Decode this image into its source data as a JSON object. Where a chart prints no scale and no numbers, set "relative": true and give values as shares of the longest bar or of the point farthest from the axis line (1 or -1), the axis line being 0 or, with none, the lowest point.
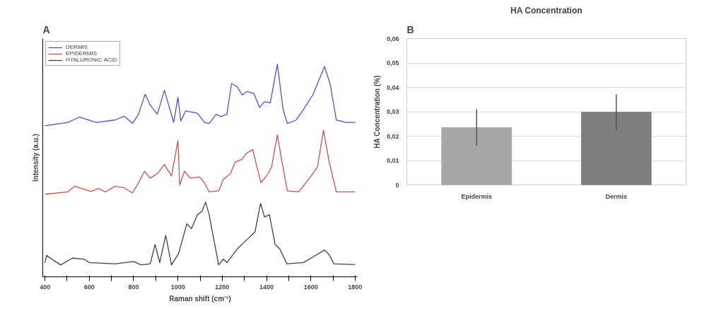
{
  "chart_data": [
    {
      "type": "line",
      "relative": true,
      "xlabel": "Raman shift (cm⁻¹)",
      "ylabel": "Intensity (a.u.)",
      "annotations": [
        "A"
      ],
      "legend": "top left",
      "grid": false,
      "tick_labels": "x",
      "xlim": [
        390,
        1810
      ],
      "xticks": [
        400,
        {
          "value": 500,
          "label": null
        },
        600,
        {
          "value": 700,
          "label": null
        },
        800,
        {
          "value": 900,
          "label": null
        },
        1000,
        {
          "value": 1100,
          "label": null
        },
        1200,
        {
          "value": 1300,
          "label": null
        },
        1400,
        {
          "value": 1500,
          "label": null
        },
        1600,
        {
          "value": 1700,
          "label": null
        },
        1800
      ],
      "series": [
        {
          "name": "DERMIS",
          "color": "#5050c8",
          "x": [
            400,
            503,
            556,
            631,
            716,
            758,
            795,
            822,
            852,
            875,
            907,
            939,
            981,
            1000,
            1013,
            1035,
            1088,
            1120,
            1141,
            1173,
            1194,
            1221,
            1242,
            1268,
            1290,
            1311,
            1343,
            1369,
            1391,
            1417,
            1449,
            1475,
            1494,
            1534,
            1566,
            1609,
            1662,
            1688,
            1715,
            1758,
            1800
          ],
          "values": [
            0.71,
            0.726,
            0.751,
            0.726,
            0.737,
            0.755,
            0.721,
            0.764,
            0.858,
            0.807,
            0.764,
            0.877,
            0.726,
            0.844,
            0.732,
            0.78,
            0.769,
            0.726,
            0.721,
            0.764,
            0.753,
            0.764,
            0.909,
            0.893,
            0.855,
            0.871,
            0.861,
            0.796,
            0.823,
            0.818,
            1.0,
            0.785,
            0.721,
            0.737,
            0.785,
            0.855,
            0.989,
            0.903,
            0.737,
            0.726,
            0.726
          ]
        },
        {
          "name": "EPIDERMIS",
          "color": "#c85050",
          "x": [
            400,
            503,
            535,
            609,
            641,
            673,
            716,
            758,
            795,
            822,
            849,
            875,
            907,
            939,
            971,
            1000,
            1008,
            1029,
            1056,
            1098,
            1120,
            1141,
            1184,
            1205,
            1237,
            1258,
            1290,
            1311,
            1338,
            1354,
            1375,
            1407,
            1423,
            1449,
            1470,
            1494,
            1545,
            1598,
            1630,
            1657,
            1683,
            1715,
            1800
          ],
          "values": [
            0.388,
            0.399,
            0.426,
            0.401,
            0.415,
            0.399,
            0.426,
            0.418,
            0.394,
            0.442,
            0.496,
            0.464,
            0.485,
            0.528,
            0.474,
            0.64,
            0.431,
            0.496,
            0.464,
            0.469,
            0.442,
            0.399,
            0.404,
            0.458,
            0.485,
            0.539,
            0.553,
            0.582,
            0.598,
            0.528,
            0.442,
            0.485,
            0.517,
            0.667,
            0.539,
            0.404,
            0.399,
            0.469,
            0.517,
            0.689,
            0.539,
            0.399,
            0.399
          ]
        },
        {
          "name": "HYALURONIC ACID",
          "color": "#404040",
          "x": [
            400,
            407,
            439,
            471,
            524,
            577,
            599,
            716,
            801,
            833,
            875,
            897,
            918,
            945,
            971,
            1003,
            1040,
            1061,
            1088,
            1109,
            1125,
            1141,
            1184,
            1205,
            1221,
            1268,
            1311,
            1348,
            1373,
            1391,
            1413,
            1439,
            1460,
            1492,
            1566,
            1609,
            1662,
            1683,
            1704,
            1800
          ],
          "values": [
            0.067,
            0.101,
            0.077,
            0.056,
            0.088,
            0.083,
            0.067,
            0.061,
            0.072,
            0.056,
            0.061,
            0.152,
            0.067,
            0.195,
            0.056,
            0.109,
            0.249,
            0.227,
            0.292,
            0.308,
            0.351,
            0.292,
            0.056,
            0.083,
            0.067,
            0.131,
            0.174,
            0.211,
            0.345,
            0.281,
            0.292,
            0.152,
            0.131,
            0.061,
            0.067,
            0.093,
            0.126,
            0.104,
            0.061,
            0.058
          ]
        }
      ]
    },
    {
      "type": "bar",
      "title": "HA Concentration",
      "ylabel": "HA Concentration (%)",
      "annotations": [
        "B"
      ],
      "grid": "y",
      "categories": [
        "Epidermis",
        "Dermis"
      ],
      "values": [
        0.0235,
        0.0298
      ],
      "errors": [
        0.0075,
        0.0073
      ],
      "colors": [
        "#a6a6a6",
        "#7f7f7f"
      ],
      "ylim": [
        0,
        0.06
      ],
      "yticks": [
        0,
        {
          "value": 0.01,
          "label": "0,01"
        },
        {
          "value": 0.02,
          "label": "0,02"
        },
        {
          "value": 0.03,
          "label": "0,03"
        },
        {
          "value": 0.04,
          "label": "0,04"
        },
        {
          "value": 0.05,
          "label": "0,05"
        },
        {
          "value": 0.06,
          "label": "0,06"
        }
      ]
    }
  ]
}
